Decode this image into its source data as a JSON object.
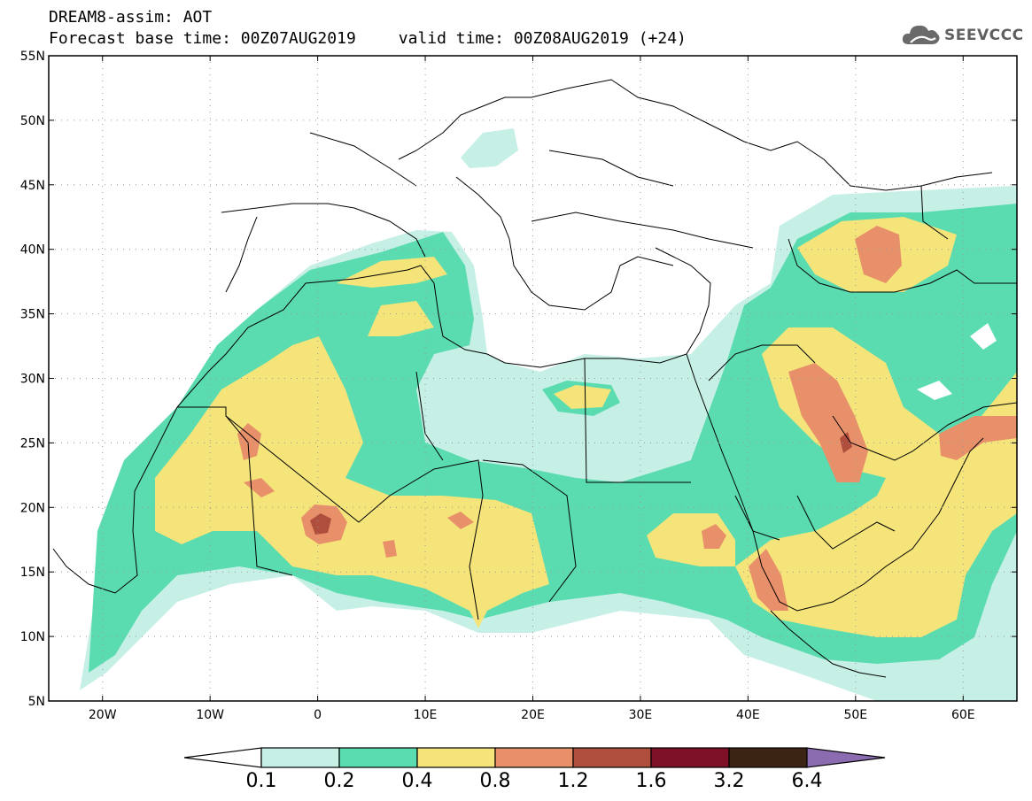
{
  "header": {
    "title": "DREAM8-assim: AOT",
    "base_time": "Forecast base time: 00Z07AUG2019",
    "valid_time": "valid time: 00Z08AUG2019 (+24)",
    "logo_text": "SEEVCCC"
  },
  "map": {
    "lat_range": [
      5,
      55
    ],
    "lon_range": [
      -25,
      65
    ],
    "lat_ticks": [
      {
        "value": 55,
        "label": "55N"
      },
      {
        "value": 50,
        "label": "50N"
      },
      {
        "value": 45,
        "label": "45N"
      },
      {
        "value": 40,
        "label": "40N"
      },
      {
        "value": 35,
        "label": "35N"
      },
      {
        "value": 30,
        "label": "30N"
      },
      {
        "value": 25,
        "label": "25N"
      },
      {
        "value": 20,
        "label": "20N"
      },
      {
        "value": 15,
        "label": "15N"
      },
      {
        "value": 10,
        "label": "10N"
      },
      {
        "value": 5,
        "label": "5N"
      }
    ],
    "lon_ticks": [
      {
        "value": -20,
        "label": "20W"
      },
      {
        "value": -10,
        "label": "10W"
      },
      {
        "value": 0,
        "label": "0"
      },
      {
        "value": 10,
        "label": "10E"
      },
      {
        "value": 20,
        "label": "20E"
      },
      {
        "value": 30,
        "label": "30E"
      },
      {
        "value": 40,
        "label": "40E"
      },
      {
        "value": 50,
        "label": "50E"
      },
      {
        "value": 60,
        "label": "60E"
      }
    ]
  },
  "colorbar": {
    "levels": [
      "0.1",
      "0.2",
      "0.4",
      "0.8",
      "1.2",
      "1.6",
      "3.2",
      "6.4"
    ],
    "colors": [
      "#ffffff",
      "#c6efe6",
      "#5bdcb0",
      "#f4e47a",
      "#e8906a",
      "#b04e3e",
      "#7e1028",
      "#3c2414",
      "#8c6cb0"
    ]
  }
}
